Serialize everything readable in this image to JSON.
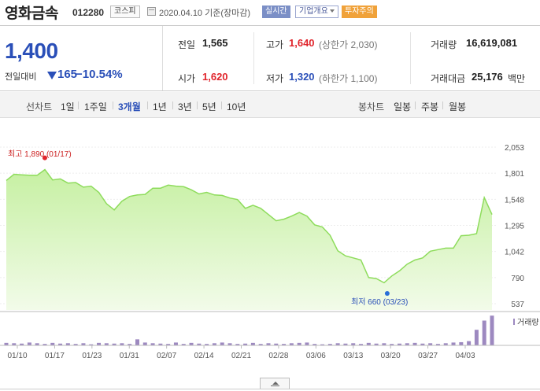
{
  "header": {
    "stock_name": "영화금속",
    "stock_code": "012280",
    "market": "코스피",
    "date": "2020.04.10 기준(장마감)",
    "realtime_label": "실시간",
    "company_label": "기업개요",
    "warning_label": "투자주의"
  },
  "price": {
    "current": "1,400",
    "change_label": "전일대비",
    "change_value": "165",
    "change_rate": "−10.54%",
    "direction": "down"
  },
  "stats": {
    "prev_close_label": "전일",
    "prev_close": "1,565",
    "open_label": "시가",
    "open": "1,620",
    "high_label": "고가",
    "high": "1,640",
    "upper_limit": "(상한가 2,030)",
    "low_label": "저가",
    "low": "1,320",
    "lower_limit": "(하한가 1,100)",
    "volume_label": "거래량",
    "volume": "16,619,081",
    "amount_label": "거래대금",
    "amount": "25,176",
    "amount_unit": "백만"
  },
  "tabs": {
    "line_head": "선차트",
    "line_periods": [
      "1일",
      "1주일",
      "3개월",
      "1년",
      "3년",
      "5년",
      "10년"
    ],
    "active_index": 2,
    "candle_head": "봉차트",
    "candle_periods": [
      "일봉",
      "주봉",
      "월봉"
    ]
  },
  "colors": {
    "price_up": "#e0242b",
    "price_down": "#2a4fb8",
    "area_line": "#8edc5c",
    "area_fill_top": "#c6f0a2",
    "volume_bar": "#9d89c0"
  },
  "chart_data": {
    "type": "area",
    "y_ticks": [
      "2,053",
      "1,801",
      "1,548",
      "1,295",
      "1,042",
      "790",
      "537"
    ],
    "ylim": [
      537,
      2053
    ],
    "x_ticks": [
      "01/10",
      "01/17",
      "01/23",
      "01/31",
      "02/07",
      "02/14",
      "02/21",
      "02/28",
      "03/06",
      "03/13",
      "03/20",
      "03/27",
      "04/03"
    ],
    "prices": [
      1730,
      1790,
      1785,
      1780,
      1780,
      1835,
      1735,
      1745,
      1705,
      1710,
      1665,
      1675,
      1615,
      1505,
      1445,
      1530,
      1575,
      1590,
      1595,
      1655,
      1655,
      1685,
      1675,
      1670,
      1640,
      1600,
      1615,
      1590,
      1585,
      1560,
      1545,
      1460,
      1490,
      1460,
      1400,
      1340,
      1355,
      1385,
      1420,
      1385,
      1300,
      1280,
      1200,
      1050,
      1000,
      980,
      960,
      790,
      780,
      740,
      805,
      855,
      920,
      960,
      980,
      1045,
      1060,
      1075,
      1075,
      1195,
      1200,
      1215,
      1565,
      1400
    ],
    "volumes": [
      0.35,
      0.3,
      0.25,
      0.4,
      0.3,
      0.2,
      0.35,
      0.25,
      0.3,
      0.2,
      0.3,
      0.15,
      0.35,
      0.3,
      0.25,
      0.3,
      0.2,
      0.85,
      0.4,
      0.3,
      0.25,
      0.2,
      0.4,
      0.2,
      0.35,
      0.25,
      0.2,
      0.3,
      0.4,
      0.3,
      0.2,
      0.25,
      0.35,
      0.2,
      0.3,
      0.25,
      0.2,
      0.3,
      0.35,
      0.4,
      0.2,
      0.15,
      0.2,
      0.3,
      0.25,
      0.3,
      0.2,
      0.35,
      0.25,
      0.3,
      0.2,
      0.25,
      0.3,
      0.35,
      0.25,
      0.3,
      0.2,
      0.3,
      0.4,
      0.45,
      0.6,
      2.2,
      3.5,
      4.2
    ],
    "max_label": "최고 1,890 (01/17)",
    "max_value": 1890,
    "min_label": "최저 660 (03/23)",
    "min_value": 660,
    "volume_legend": "거래량"
  }
}
